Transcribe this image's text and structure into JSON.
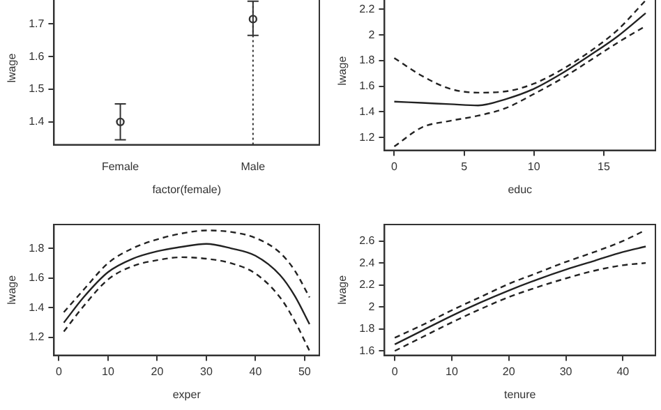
{
  "chart_data": [
    {
      "type": "scatter",
      "xlabel": "factor(female)",
      "ylabel": "lwage",
      "categories": [
        "Female",
        "Male"
      ],
      "marker": "circle",
      "grid": false,
      "ylim": [
        1.33,
        1.8
      ],
      "yticks": [
        1.4,
        1.5,
        1.6,
        1.7
      ],
      "series": [
        {
          "color": "#333333",
          "values": [
            1.4,
            1.715
          ],
          "errors": [
            [
              1.345,
              1.455
            ],
            [
              1.665,
              1.77
            ]
          ]
        }
      ],
      "ref_lines": [
        {
          "axis": "x",
          "value": "Male",
          "line_style": "dotted",
          "color": "#333333"
        }
      ]
    },
    {
      "type": "line",
      "xlabel": "educ",
      "ylabel": "lwage",
      "grid": false,
      "marker": "none",
      "xlim": [
        -0.7,
        18.7
      ],
      "xticks": [
        0,
        5,
        10,
        15
      ],
      "ylim": [
        1.1,
        2.34
      ],
      "yticks": [
        1.2,
        1.4,
        1.6,
        1.8,
        2.0,
        2.2
      ],
      "series": [
        {
          "color": "#222222",
          "line_style": "solid",
          "x": [
            0,
            2,
            4,
            6,
            8,
            10,
            12,
            14,
            16,
            18
          ],
          "values": [
            1.48,
            1.47,
            1.46,
            1.45,
            1.5,
            1.58,
            1.7,
            1.84,
            1.99,
            2.17
          ]
        },
        {
          "color": "#222222",
          "line_style": "dashed",
          "x": [
            0,
            2,
            4,
            6,
            8,
            10,
            12,
            14,
            16,
            18
          ],
          "values": [
            1.82,
            1.68,
            1.58,
            1.55,
            1.56,
            1.62,
            1.73,
            1.87,
            2.04,
            2.27
          ]
        },
        {
          "color": "#222222",
          "line_style": "dashed",
          "x": [
            0,
            2,
            4,
            6,
            8,
            10,
            12,
            14,
            16,
            18
          ],
          "values": [
            1.13,
            1.28,
            1.33,
            1.37,
            1.43,
            1.54,
            1.66,
            1.8,
            1.94,
            2.07
          ]
        }
      ]
    },
    {
      "type": "line",
      "xlabel": "exper",
      "ylabel": "lwage",
      "grid": false,
      "marker": "none",
      "xlim": [
        -1,
        53
      ],
      "xticks": [
        0,
        10,
        20,
        30,
        40,
        50
      ],
      "ylim": [
        1.08,
        1.96
      ],
      "yticks": [
        1.2,
        1.4,
        1.6,
        1.8
      ],
      "series": [
        {
          "color": "#222222",
          "line_style": "solid",
          "x": [
            1,
            5,
            10,
            15,
            20,
            25,
            30,
            35,
            40,
            45,
            48,
            51
          ],
          "values": [
            1.3,
            1.47,
            1.64,
            1.73,
            1.78,
            1.81,
            1.83,
            1.8,
            1.75,
            1.62,
            1.48,
            1.29
          ]
        },
        {
          "color": "#222222",
          "line_style": "dashed",
          "x": [
            1,
            5,
            10,
            15,
            20,
            25,
            30,
            35,
            40,
            45,
            48,
            51
          ],
          "values": [
            1.37,
            1.52,
            1.7,
            1.8,
            1.86,
            1.9,
            1.92,
            1.91,
            1.87,
            1.77,
            1.65,
            1.47
          ]
        },
        {
          "color": "#222222",
          "line_style": "dashed",
          "x": [
            1,
            5,
            10,
            15,
            20,
            25,
            30,
            35,
            40,
            45,
            48,
            51
          ],
          "values": [
            1.24,
            1.41,
            1.59,
            1.68,
            1.72,
            1.74,
            1.73,
            1.7,
            1.63,
            1.47,
            1.31,
            1.11
          ]
        }
      ]
    },
    {
      "type": "line",
      "xlabel": "tenure",
      "ylabel": "lwage",
      "grid": false,
      "marker": "none",
      "xlim": [
        -1.8,
        45.7
      ],
      "xticks": [
        0,
        10,
        20,
        30,
        40
      ],
      "ylim": [
        1.56,
        2.75
      ],
      "yticks": [
        1.6,
        1.8,
        2.0,
        2.2,
        2.4,
        2.6
      ],
      "series": [
        {
          "color": "#222222",
          "line_style": "solid",
          "x": [
            0,
            5,
            10,
            15,
            20,
            25,
            30,
            35,
            40,
            44
          ],
          "values": [
            1.66,
            1.79,
            1.92,
            2.04,
            2.15,
            2.25,
            2.34,
            2.42,
            2.5,
            2.55
          ]
        },
        {
          "color": "#222222",
          "line_style": "dashed",
          "x": [
            0,
            5,
            10,
            15,
            20,
            25,
            30,
            35,
            40,
            44
          ],
          "values": [
            1.72,
            1.84,
            1.97,
            2.09,
            2.21,
            2.31,
            2.41,
            2.5,
            2.6,
            2.7
          ]
        },
        {
          "color": "#222222",
          "line_style": "dashed",
          "x": [
            0,
            5,
            10,
            15,
            20,
            25,
            30,
            35,
            40,
            44
          ],
          "values": [
            1.6,
            1.73,
            1.86,
            1.98,
            2.09,
            2.18,
            2.26,
            2.33,
            2.38,
            2.4
          ]
        }
      ]
    }
  ]
}
